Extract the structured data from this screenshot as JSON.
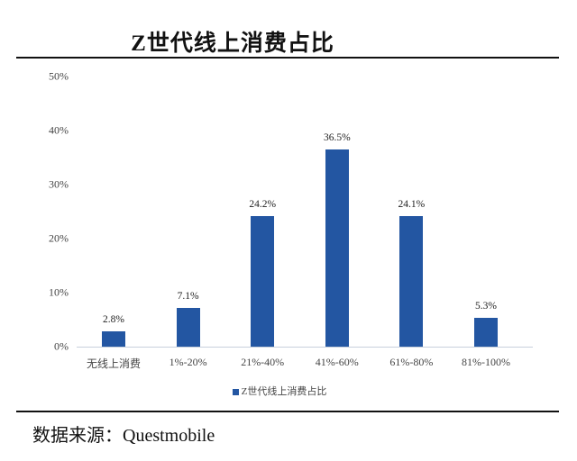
{
  "header": {
    "title": "Z世代线上消费占比"
  },
  "footer": {
    "source": "数据来源：Questmobile"
  },
  "colors": {
    "bar": "#2356a2",
    "rule": "#111111",
    "axis": "#c8d0dc"
  },
  "chart_data": {
    "type": "bar",
    "title": "Z世代线上消费占比",
    "xlabel": "",
    "ylabel": "",
    "categories": [
      "无线上消费",
      "1%-20%",
      "21%-40%",
      "41%-60%",
      "61%-80%",
      "81%-100%"
    ],
    "series": [
      {
        "name": "Z世代线上消费占比",
        "values": [
          2.8,
          7.1,
          24.2,
          36.5,
          24.1,
          5.3
        ]
      }
    ],
    "data_labels": [
      "2.8%",
      "7.1%",
      "24.2%",
      "36.5%",
      "24.1%",
      "5.3%"
    ],
    "yticks": [
      "0%",
      "10%",
      "20%",
      "30%",
      "40%",
      "50%"
    ],
    "ylim": [
      0,
      50
    ],
    "grid": false,
    "legend_position": "bottom"
  }
}
